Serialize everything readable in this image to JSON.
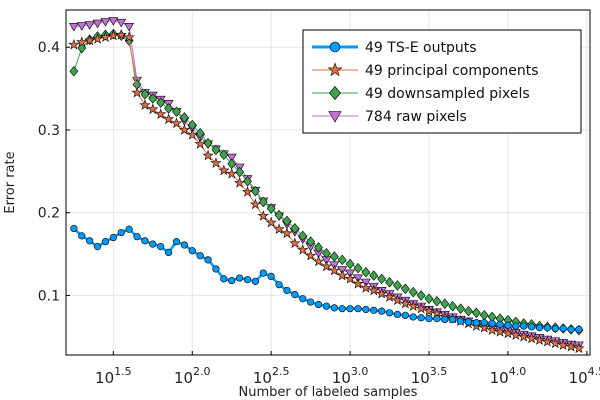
{
  "chart_data": {
    "type": "line",
    "title": "",
    "xlabel": "Number of labeled samples",
    "ylabel": "Error rate",
    "xscale": "log10",
    "xlim_exponent": [
      1.2,
      4.52
    ],
    "ylim": [
      0.028,
      0.445
    ],
    "x_ticks": [
      {
        "base": "10",
        "exp": "1.5",
        "value": 1.5
      },
      {
        "base": "10",
        "exp": "2.0",
        "value": 2.0
      },
      {
        "base": "10",
        "exp": "2.5",
        "value": 2.5
      },
      {
        "base": "10",
        "exp": "3.0",
        "value": 3.0
      },
      {
        "base": "10",
        "exp": "3.5",
        "value": 3.5
      },
      {
        "base": "10",
        "exp": "4.0",
        "value": 4.0
      },
      {
        "base": "10",
        "exp": "4.5",
        "value": 4.5
      }
    ],
    "y_ticks": [
      {
        "label": "0.1",
        "value": 0.1
      },
      {
        "label": "0.2",
        "value": 0.2
      },
      {
        "label": "0.3",
        "value": 0.3
      },
      {
        "label": "0.4",
        "value": 0.4
      }
    ],
    "grid": true,
    "legend_position": "top-right",
    "x_exponents": [
      1.25,
      1.3,
      1.35,
      1.4,
      1.45,
      1.5,
      1.55,
      1.6,
      1.65,
      1.7,
      1.75,
      1.8,
      1.85,
      1.9,
      1.95,
      2.0,
      2.05,
      2.1,
      2.15,
      2.2,
      2.25,
      2.3,
      2.35,
      2.4,
      2.45,
      2.5,
      2.55,
      2.6,
      2.65,
      2.7,
      2.75,
      2.8,
      2.85,
      2.9,
      2.95,
      3.0,
      3.05,
      3.1,
      3.15,
      3.2,
      3.25,
      3.3,
      3.35,
      3.4,
      3.45,
      3.5,
      3.55,
      3.6,
      3.65,
      3.7,
      3.75,
      3.8,
      3.85,
      3.9,
      3.95,
      4.0,
      4.05,
      4.1,
      4.15,
      4.2,
      4.25,
      4.3,
      4.35,
      4.4,
      4.45
    ],
    "series": [
      {
        "name": "49 TS-E outputs",
        "color": "#009AFA",
        "marker": "circle",
        "line_width": 2.5,
        "values": [
          0.181,
          0.172,
          0.166,
          0.159,
          0.165,
          0.17,
          0.176,
          0.18,
          0.171,
          0.166,
          0.162,
          0.159,
          0.152,
          0.165,
          0.161,
          0.154,
          0.148,
          0.143,
          0.132,
          0.12,
          0.118,
          0.121,
          0.119,
          0.117,
          0.127,
          0.123,
          0.113,
          0.106,
          0.101,
          0.096,
          0.092,
          0.089,
          0.087,
          0.085,
          0.084,
          0.084,
          0.084,
          0.083,
          0.082,
          0.081,
          0.079,
          0.077,
          0.076,
          0.074,
          0.073,
          0.072,
          0.072,
          0.071,
          0.071,
          0.069,
          0.068,
          0.067,
          0.067,
          0.066,
          0.065,
          0.064,
          0.063,
          0.063,
          0.062,
          0.061,
          0.061,
          0.06,
          0.06,
          0.059,
          0.059
        ]
      },
      {
        "name": "49 principal components",
        "color": "#E26F46",
        "marker": "star",
        "line_width": 1,
        "values": [
          0.403,
          0.406,
          0.408,
          0.41,
          0.412,
          0.414,
          0.415,
          0.412,
          0.345,
          0.33,
          0.325,
          0.319,
          0.313,
          0.308,
          0.3,
          0.294,
          0.283,
          0.269,
          0.26,
          0.251,
          0.247,
          0.236,
          0.225,
          0.21,
          0.196,
          0.188,
          0.18,
          0.175,
          0.163,
          0.155,
          0.148,
          0.141,
          0.135,
          0.13,
          0.124,
          0.12,
          0.114,
          0.109,
          0.106,
          0.102,
          0.098,
          0.094,
          0.09,
          0.087,
          0.084,
          0.081,
          0.078,
          0.074,
          0.072,
          0.069,
          0.066,
          0.063,
          0.061,
          0.058,
          0.056,
          0.054,
          0.052,
          0.05,
          0.048,
          0.046,
          0.044,
          0.042,
          0.04,
          0.038,
          0.036
        ]
      },
      {
        "name": "49 downsampled pixels",
        "color": "#3DA44D",
        "marker": "diamond",
        "line_width": 1,
        "values": [
          0.371,
          0.399,
          0.409,
          0.413,
          0.415,
          0.416,
          0.414,
          0.408,
          0.355,
          0.343,
          0.338,
          0.333,
          0.326,
          0.322,
          0.315,
          0.306,
          0.296,
          0.284,
          0.276,
          0.27,
          0.259,
          0.249,
          0.238,
          0.226,
          0.213,
          0.205,
          0.197,
          0.19,
          0.181,
          0.172,
          0.165,
          0.158,
          0.151,
          0.147,
          0.143,
          0.138,
          0.133,
          0.128,
          0.124,
          0.12,
          0.116,
          0.112,
          0.108,
          0.104,
          0.1,
          0.096,
          0.093,
          0.09,
          0.087,
          0.084,
          0.081,
          0.079,
          0.076,
          0.074,
          0.072,
          0.07,
          0.068,
          0.066,
          0.065,
          0.063,
          0.062,
          0.061,
          0.06,
          0.059,
          0.058
        ]
      },
      {
        "name": "784 raw pixels",
        "color": "#C271D2",
        "marker": "triangle-down",
        "line_width": 1,
        "values": [
          0.425,
          0.426,
          0.427,
          0.429,
          0.431,
          0.432,
          0.43,
          0.425,
          0.36,
          0.345,
          0.342,
          0.337,
          0.332,
          0.322,
          0.311,
          0.302,
          0.291,
          0.283,
          0.277,
          0.271,
          0.267,
          0.255,
          0.241,
          0.227,
          0.214,
          0.206,
          0.196,
          0.186,
          0.177,
          0.168,
          0.159,
          0.151,
          0.143,
          0.137,
          0.131,
          0.127,
          0.121,
          0.116,
          0.111,
          0.106,
          0.102,
          0.098,
          0.094,
          0.09,
          0.087,
          0.083,
          0.08,
          0.077,
          0.074,
          0.071,
          0.069,
          0.066,
          0.064,
          0.061,
          0.059,
          0.057,
          0.055,
          0.053,
          0.051,
          0.049,
          0.047,
          0.045,
          0.043,
          0.041,
          0.04
        ]
      }
    ]
  }
}
